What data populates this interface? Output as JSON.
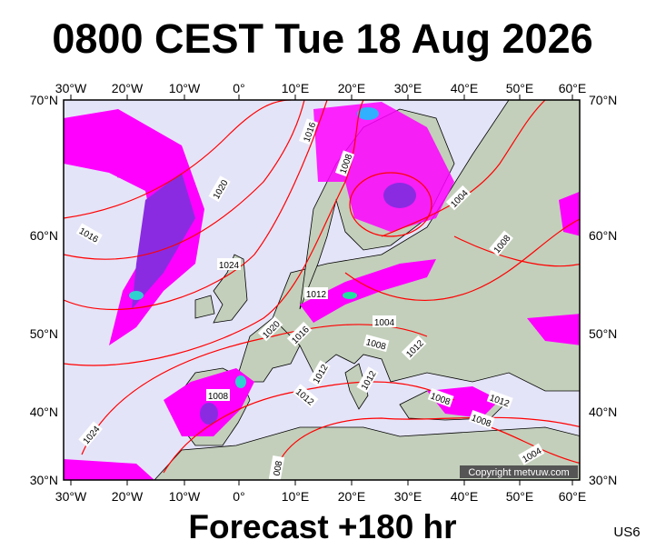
{
  "header": {
    "title": "0800 CEST Tue 18 Aug 2026"
  },
  "footer": {
    "forecast": "Forecast +180 hr",
    "model": "US6",
    "copyright": "Copyright metvuw.com"
  },
  "map": {
    "longitude_labels": [
      "30°W",
      "20°W",
      "10°W",
      "0°",
      "10°E",
      "20°E",
      "30°E",
      "40°E",
      "50°E",
      "60°E"
    ],
    "latitude_labels": [
      "70°N",
      "60°N",
      "50°N",
      "40°N",
      "30°N"
    ],
    "isobar_labels": [
      "1016",
      "1008",
      "1020",
      "1016",
      "1024",
      "1004",
      "1008",
      "1012",
      "1004",
      "1020",
      "1016",
      "1008",
      "1012",
      "1012",
      "1012",
      "1008",
      "1012",
      "1008",
      "1012",
      "1008",
      "1024",
      "1004",
      "008"
    ]
  }
}
